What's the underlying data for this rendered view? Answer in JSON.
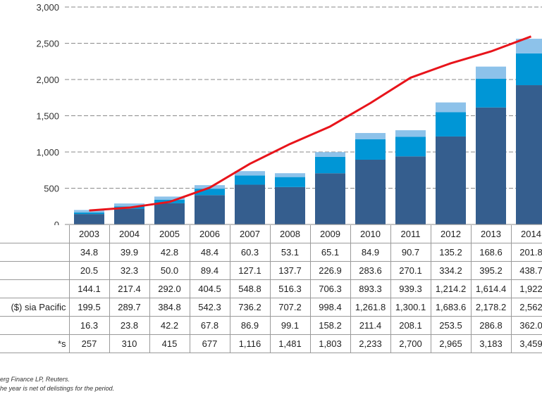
{
  "chart_data": {
    "type": "bar+line",
    "stacked": true,
    "categories": [
      "2003",
      "2004",
      "2005",
      "2006",
      "2007",
      "2008",
      "2009",
      "2010",
      "2011",
      "2012",
      "2013",
      "2014"
    ],
    "series": [
      {
        "row": 3,
        "kind": "bar",
        "color": "#355E8E",
        "values": [
          144.1,
          217.4,
          292.0,
          404.5,
          548.8,
          516.3,
          706.3,
          893.3,
          939.3,
          1214.2,
          1614.4,
          1922
        ]
      },
      {
        "row": 2,
        "kind": "bar",
        "color": "#0096D6",
        "values": [
          20.5,
          32.3,
          50.0,
          89.4,
          127.1,
          137.7,
          226.9,
          283.6,
          270.1,
          334.2,
          395.2,
          438.7
        ]
      },
      {
        "row": 1,
        "kind": "bar",
        "color": "#8DC2EA",
        "values": [
          34.8,
          39.9,
          42.8,
          48.4,
          60.3,
          53.1,
          65.1,
          84.9,
          90.7,
          135.2,
          168.6,
          201.8
        ]
      },
      {
        "row": 6,
        "kind": "line",
        "axis": "secondary",
        "color": "#E8141B",
        "values": [
          257,
          310,
          415,
          677,
          1116,
          1481,
          1803,
          2233,
          2700,
          2965,
          3183,
          3459
        ]
      }
    ],
    "ylim": [
      0,
      3000
    ],
    "y2lim": [
      0,
      4000
    ],
    "yticks": [
      "0",
      "500",
      "1,000",
      "1,500",
      "2,000",
      "2,500",
      "3,000"
    ],
    "grid": true,
    "grid_style": "dashed"
  },
  "table": {
    "header": [
      "",
      "2003",
      "2004",
      "2005",
      "2006",
      "2007",
      "2008",
      "2009",
      "2010",
      "2011",
      "2012",
      "2013",
      "2014"
    ],
    "rows": [
      {
        "label": "",
        "cells": [
          "34.8",
          "39.9",
          "42.8",
          "48.4",
          "60.3",
          "53.1",
          "65.1",
          "84.9",
          "90.7",
          "135.2",
          "168.6",
          "201.8"
        ]
      },
      {
        "label": "",
        "cells": [
          "20.5",
          "32.3",
          "50.0",
          "89.4",
          "127.1",
          "137.7",
          "226.9",
          "283.6",
          "270.1",
          "334.2",
          "395.2",
          "438.7"
        ]
      },
      {
        "label": "",
        "cells": [
          "144.1",
          "217.4",
          "292.0",
          "404.5",
          "548.8",
          "516.3",
          "706.3",
          "893.3",
          "939.3",
          "1,214.2",
          "1,614.4",
          "1,922"
        ]
      },
      {
        "label": "sia Pacific ($)",
        "cells": [
          "199.5",
          "289.7",
          "384.8",
          "542.3",
          "736.2",
          "707.2",
          "998.4",
          "1,261.8",
          "1,300.1",
          "1,683.6",
          "2,178.2",
          "2,562"
        ]
      },
      {
        "label": "",
        "cells": [
          "16.3",
          "23.8",
          "42.2",
          "67.8",
          "86.9",
          "99.1",
          "158.2",
          "211.4",
          "208.1",
          "253.5",
          "286.8",
          "362.0"
        ]
      },
      {
        "label": "s*",
        "cells": [
          "257",
          "310",
          "415",
          "677",
          "1,116",
          "1,481",
          "1,803",
          "2,233",
          "2,700",
          "2,965",
          "3,183",
          "3,459"
        ]
      }
    ]
  },
  "footnotes": [
    "erg Finance LP, Reuters.",
    "he year is net of delistings for the period."
  ]
}
